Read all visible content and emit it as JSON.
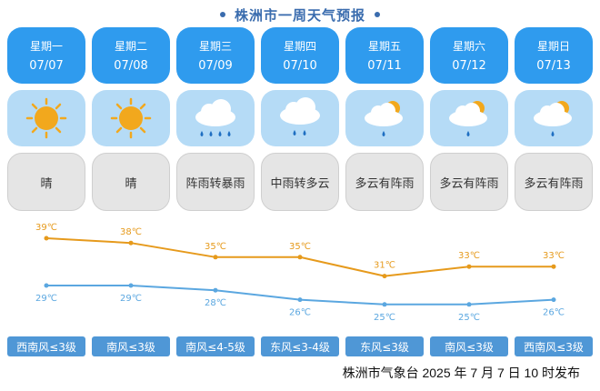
{
  "title": "株洲市一周天气预报",
  "days": [
    {
      "weekday": "星期一",
      "date": "07/07",
      "weather": "晴",
      "icon": "sun-icon",
      "wind": "西南风≤3级",
      "high": 39,
      "low": 29,
      "high_label": "39℃",
      "low_label": "29℃"
    },
    {
      "weekday": "星期二",
      "date": "07/08",
      "weather": "晴",
      "icon": "sun-icon",
      "wind": "南风≤3级",
      "high": 38,
      "low": 29,
      "high_label": "38℃",
      "low_label": "29℃"
    },
    {
      "weekday": "星期三",
      "date": "07/09",
      "weather": "阵雨转暴雨",
      "icon": "heavy-rain-icon",
      "wind": "南风≤4-5级",
      "high": 35,
      "low": 28,
      "high_label": "35℃",
      "low_label": "28℃"
    },
    {
      "weekday": "星期四",
      "date": "07/10",
      "weather": "中雨转多云",
      "icon": "moderate-rain-icon",
      "wind": "东风≤3-4级",
      "high": 35,
      "low": 26,
      "high_label": "35℃",
      "low_label": "26℃"
    },
    {
      "weekday": "星期五",
      "date": "07/11",
      "weather": "多云有阵雨",
      "icon": "cloudy-shower-icon",
      "wind": "东风≤3级",
      "high": 31,
      "low": 25,
      "high_label": "31℃",
      "low_label": "25℃"
    },
    {
      "weekday": "星期六",
      "date": "07/12",
      "weather": "多云有阵雨",
      "icon": "cloudy-shower-icon",
      "wind": "南风≤3级",
      "high": 33,
      "low": 25,
      "high_label": "33℃",
      "low_label": "25℃"
    },
    {
      "weekday": "星期日",
      "date": "07/13",
      "weather": "多云有阵雨",
      "icon": "cloudy-shower-icon",
      "wind": "西南风≤3级",
      "high": 33,
      "low": 26,
      "high_label": "33℃",
      "low_label": "26℃"
    }
  ],
  "chart_data": {
    "type": "line",
    "categories": [
      "07/07",
      "07/08",
      "07/09",
      "07/10",
      "07/11",
      "07/12",
      "07/13"
    ],
    "series": [
      {
        "values": [
          39,
          38,
          35,
          35,
          31,
          33,
          33
        ],
        "color": "#e69a1c"
      },
      {
        "values": [
          29,
          29,
          28,
          26,
          25,
          25,
          26
        ],
        "color": "#5ba7e0"
      }
    ],
    "unit": "℃",
    "grid": false
  },
  "footer": "株洲市气象台 2025 年 7 月 7 日 10 时发布",
  "colors": {
    "title": "#3a6cae",
    "day_header": "#2f9bee",
    "icon_bg": "#b5dbf6",
    "wind_bg": "#4f97d6",
    "high_line": "#e69a1c",
    "low_line": "#5ba7e0"
  }
}
